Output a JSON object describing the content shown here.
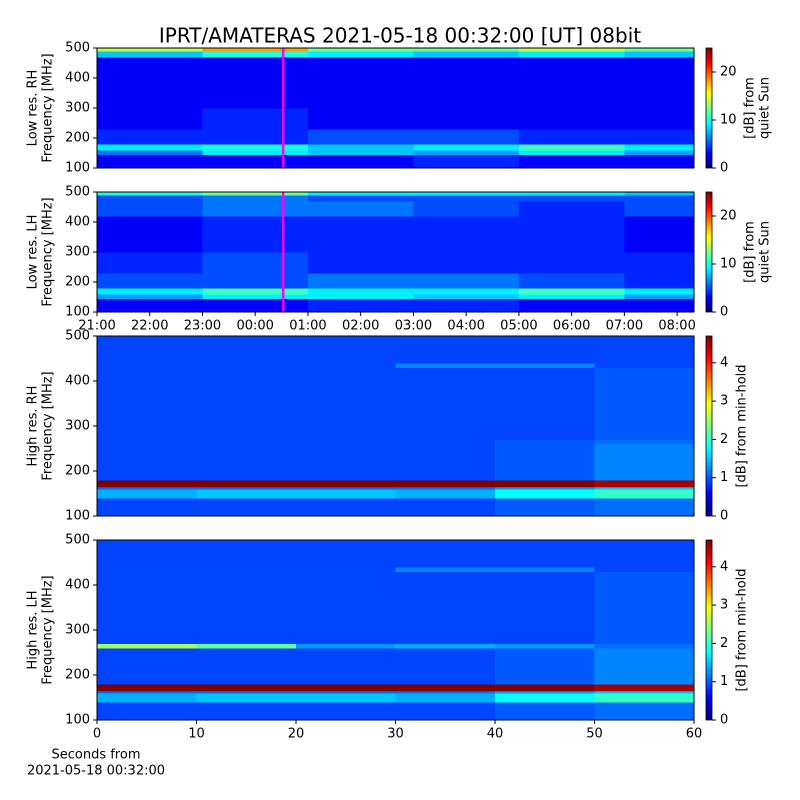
{
  "chart_data": [
    {
      "type": "heatmap",
      "title": "IPRT/AMATERAS 2021-05-18 00:32:00 [UT]   08bit",
      "ylabel": [
        "Low res. RH",
        "Frequency [MHz]"
      ],
      "colorbar_label": [
        "[dB] from",
        "quiet Sun"
      ],
      "xlim": [
        21,
        32.32
      ],
      "ylim": [
        100,
        500
      ],
      "yticks": [
        100,
        200,
        300,
        400,
        500
      ],
      "zlim": [
        0,
        25
      ],
      "zticks": [
        0,
        10,
        20
      ],
      "colormap": "jet",
      "vline": 24.53,
      "vline_color": "#ff00ff",
      "x_bins": [
        21,
        23,
        25,
        27,
        29,
        31,
        32.32
      ],
      "y_bins": [
        100,
        145,
        160,
        180,
        230,
        300,
        420,
        470,
        490,
        500
      ],
      "z": [
        [
          3,
          3,
          3,
          4,
          3,
          3
        ],
        [
          6,
          9,
          8,
          7,
          9,
          7
        ],
        [
          9,
          10,
          8,
          9,
          11,
          9
        ],
        [
          4,
          4,
          5,
          5,
          4,
          4
        ],
        [
          3,
          4,
          3,
          3,
          3,
          3
        ],
        [
          3,
          3,
          3,
          3,
          3,
          3
        ],
        [
          3,
          3,
          3,
          3,
          3,
          3
        ],
        [
          8,
          10,
          9,
          8,
          9,
          8
        ],
        [
          14,
          18,
          12,
          12,
          14,
          12
        ]
      ]
    },
    {
      "type": "heatmap",
      "ylabel": [
        "Low res. LH",
        "Frequency [MHz]"
      ],
      "colorbar_label": [
        "[dB] from",
        "quiet Sun"
      ],
      "xlim": [
        21,
        32.32
      ],
      "ylim": [
        100,
        500
      ],
      "yticks": [
        100,
        200,
        300,
        400,
        500
      ],
      "xticks": [
        {
          "value": 21,
          "label": "21:00"
        },
        {
          "value": 22,
          "label": "22:00"
        },
        {
          "value": 23,
          "label": "23:00"
        },
        {
          "value": 24,
          "label": "00:00"
        },
        {
          "value": 25,
          "label": "01:00"
        },
        {
          "value": 26,
          "label": "02:00"
        },
        {
          "value": 27,
          "label": "03:00"
        },
        {
          "value": 28,
          "label": "04:00"
        },
        {
          "value": 29,
          "label": "05:00"
        },
        {
          "value": 30,
          "label": "06:00"
        },
        {
          "value": 31,
          "label": "07:00"
        },
        {
          "value": 32,
          "label": "08:00"
        }
      ],
      "zlim": [
        0,
        25
      ],
      "zticks": [
        0,
        10,
        20
      ],
      "colormap": "jet",
      "vline": 24.53,
      "vline_color": "#ff00ff",
      "x_bins": [
        21,
        23,
        25,
        27,
        29,
        31,
        32.32
      ],
      "y_bins": [
        100,
        145,
        160,
        180,
        230,
        300,
        420,
        470,
        490,
        500
      ],
      "z": [
        [
          3,
          3,
          4,
          4,
          3,
          3
        ],
        [
          7,
          9,
          9,
          8,
          9,
          7
        ],
        [
          9,
          11,
          9,
          9,
          11,
          9
        ],
        [
          5,
          5,
          6,
          6,
          5,
          4
        ],
        [
          4,
          5,
          4,
          4,
          4,
          4
        ],
        [
          3,
          4,
          4,
          4,
          4,
          3
        ],
        [
          5,
          6,
          6,
          5,
          4,
          5
        ],
        [
          5,
          6,
          5,
          5,
          5,
          5
        ],
        [
          10,
          12,
          9,
          9,
          9,
          8
        ]
      ]
    },
    {
      "type": "heatmap",
      "ylabel": [
        "High res. RH",
        "Frequency [MHz]"
      ],
      "colorbar_label": [
        "[dB] from min-hold"
      ],
      "xlim": [
        0,
        60
      ],
      "ylim": [
        100,
        500
      ],
      "yticks": [
        100,
        200,
        300,
        400,
        500
      ],
      "zlim": [
        0,
        4.7
      ],
      "zticks": [
        0,
        1,
        2,
        3,
        4
      ],
      "colormap": "jet",
      "x_bins": [
        0,
        10,
        20,
        30,
        40,
        50,
        60
      ],
      "y_bins": [
        100,
        140,
        160,
        165,
        180,
        260,
        270,
        430,
        440,
        500
      ],
      "z": [
        [
          0.9,
          0.9,
          0.9,
          0.9,
          1.0,
          1.1
        ],
        [
          1.4,
          1.5,
          1.5,
          1.4,
          1.8,
          2.0
        ],
        [
          1.1,
          1.1,
          1.1,
          1.1,
          1.3,
          1.5
        ],
        [
          4.7,
          4.7,
          4.7,
          4.7,
          4.7,
          4.5
        ],
        [
          0.9,
          0.9,
          0.9,
          0.9,
          1.0,
          1.2
        ],
        [
          0.9,
          0.9,
          0.9,
          0.9,
          1.0,
          1.1
        ],
        [
          0.9,
          0.9,
          0.9,
          0.9,
          0.9,
          1.0
        ],
        [
          0.9,
          0.9,
          0.9,
          1.2,
          1.2,
          0.9
        ],
        [
          0.9,
          0.9,
          0.9,
          0.9,
          0.9,
          0.9
        ]
      ]
    },
    {
      "type": "heatmap",
      "ylabel": [
        "High res. LH",
        "Frequency [MHz]"
      ],
      "xlabel": [
        "Seconds from",
        "2021-05-18 00:32:00"
      ],
      "colorbar_label": [
        "[dB] from min-hold"
      ],
      "xlim": [
        0,
        60
      ],
      "ylim": [
        100,
        500
      ],
      "yticks": [
        100,
        200,
        300,
        400,
        500
      ],
      "xticks": [
        0,
        10,
        20,
        30,
        40,
        50,
        60
      ],
      "zlim": [
        0,
        4.7
      ],
      "zticks": [
        0,
        1,
        2,
        3,
        4
      ],
      "colormap": "jet",
      "x_bins": [
        0,
        10,
        20,
        30,
        40,
        50,
        60
      ],
      "y_bins": [
        100,
        140,
        160,
        165,
        180,
        260,
        270,
        430,
        440,
        500
      ],
      "z": [
        [
          0.9,
          0.9,
          0.9,
          0.9,
          1.0,
          1.1
        ],
        [
          1.4,
          1.5,
          1.5,
          1.4,
          1.8,
          2.0
        ],
        [
          1.1,
          1.1,
          1.1,
          1.1,
          1.3,
          1.5
        ],
        [
          4.7,
          4.7,
          4.7,
          4.7,
          4.7,
          4.5
        ],
        [
          0.9,
          0.9,
          0.9,
          0.9,
          1.0,
          1.2
        ],
        [
          2.5,
          2.2,
          1.3,
          1.4,
          1.3,
          1.1
        ],
        [
          0.9,
          0.9,
          0.9,
          0.9,
          0.9,
          1.0
        ],
        [
          0.9,
          0.9,
          0.9,
          1.2,
          1.2,
          0.9
        ],
        [
          0.9,
          0.9,
          0.9,
          0.9,
          0.9,
          0.9
        ]
      ]
    }
  ]
}
